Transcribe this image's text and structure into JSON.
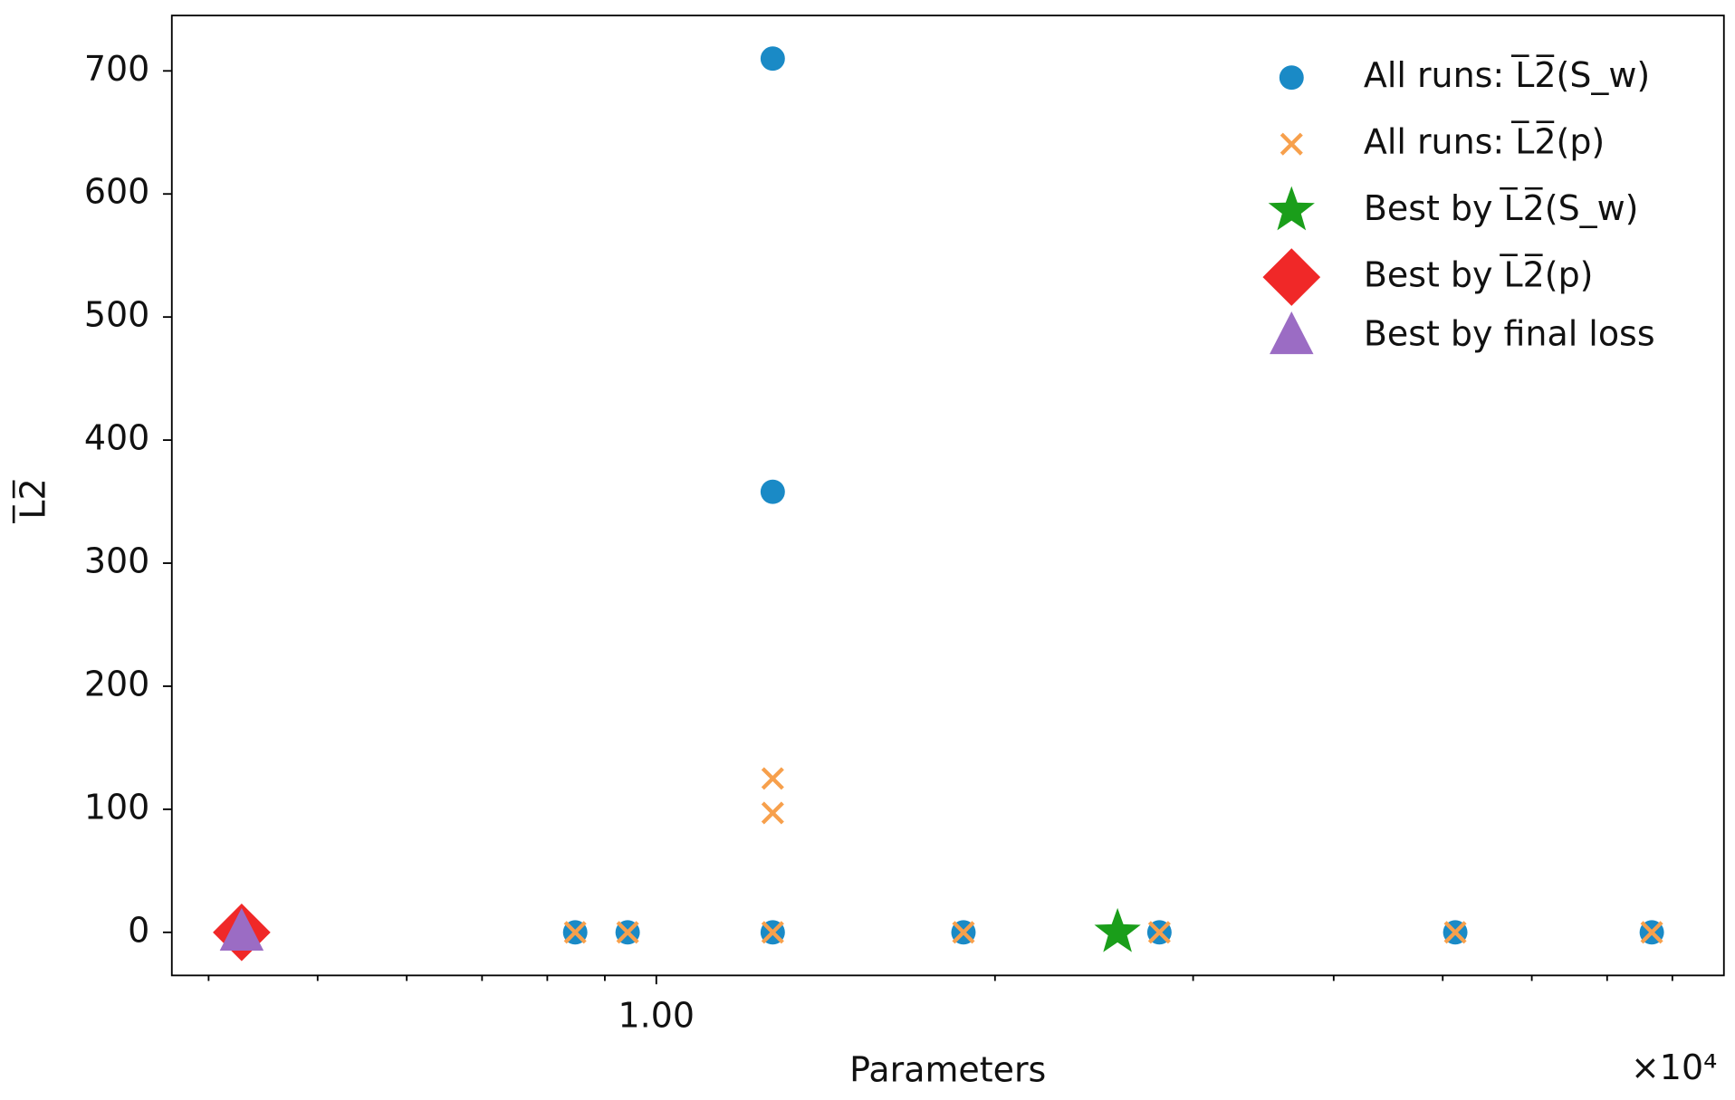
{
  "chart_data": {
    "type": "scatter",
    "xlabel": "Parameters",
    "ylabel": "L̅2̅",
    "x_offset_label": "×10⁴",
    "xscale": "log",
    "xlim": [
      3710,
      88900
    ],
    "ylim": [
      -35,
      745
    ],
    "xticks": [
      {
        "value": 10000,
        "label": "1.00"
      }
    ],
    "xminor_ticks": [
      4000,
      5000,
      6000,
      7000,
      8000,
      9000,
      20000,
      30000,
      40000,
      50000,
      60000,
      70000,
      80000
    ],
    "yticks": [
      0,
      100,
      200,
      300,
      400,
      500,
      600,
      700
    ],
    "legend": "upper right",
    "series": [
      {
        "name": "All runs: L̅2̅(S_w)",
        "color": "#1a8ac6",
        "marker": "circle",
        "x": [
          4280,
          8470,
          9430,
          12690,
          12690,
          12690,
          18750,
          28000,
          51300,
          76700
        ],
        "values": [
          0,
          0,
          0,
          0,
          358,
          710,
          0,
          0,
          0,
          0
        ]
      },
      {
        "name": "All runs: L̅2̅(p)",
        "color": "#f7a04c",
        "marker": "x",
        "x": [
          4280,
          8470,
          9430,
          12690,
          12690,
          12690,
          18750,
          28000,
          51300,
          76700
        ],
        "values": [
          0,
          0,
          0,
          0,
          97,
          125,
          0,
          0,
          0,
          0
        ]
      },
      {
        "name": "Best by L̅2̅(S_w)",
        "color": "#1a9e1a",
        "marker": "star",
        "x": [
          25700
        ],
        "values": [
          0
        ]
      },
      {
        "name": "Best by L̅2̅(p)",
        "color": "#f02828",
        "marker": "diamond",
        "x": [
          4280
        ],
        "values": [
          0
        ]
      },
      {
        "name": "Best by final loss",
        "color": "#9b6cc4",
        "marker": "triangle",
        "x": [
          4280
        ],
        "values": [
          0
        ]
      }
    ]
  }
}
